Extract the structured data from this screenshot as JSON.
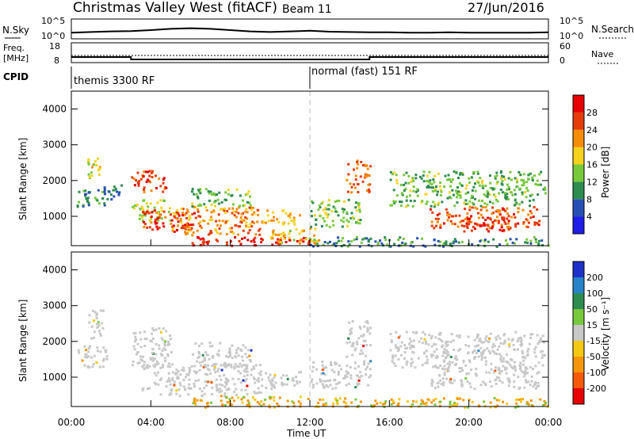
{
  "header": {
    "station": "Christmas Valley West (fitACF)",
    "beam": "Beam 11",
    "date": "27/Jun/2016"
  },
  "noise_panel": {
    "left_label": "N.Sky",
    "right_label": "N.Search",
    "left_ticks": [
      "10^5",
      "10^0"
    ],
    "right_ticks": [
      "10^5",
      "10^0"
    ]
  },
  "freq_panel": {
    "left_label_line1": "Freq.",
    "left_label_line2": "[MHz]",
    "left_ticks": [
      "18",
      "8"
    ],
    "right_label": "Nave",
    "right_ticks": [
      "60",
      "0"
    ]
  },
  "cpid_panel": {
    "label": "CPID",
    "modes": [
      "themis 3300 RF",
      "normal (fast) 151 RF"
    ]
  },
  "power_panel": {
    "ylabel": "Slant Range [km]",
    "yticks": [
      "1000",
      "2000",
      "3000",
      "4000"
    ],
    "colorbar_label": "Power [dB]",
    "colorbar_ticks": [
      "4",
      "8",
      "12",
      "16",
      "20",
      "24",
      "28"
    ],
    "colorbar_colors": [
      "#1e1ee6",
      "#2850b4",
      "#2d8c50",
      "#78c83c",
      "#f5d21e",
      "#f58c0a",
      "#e63c0a",
      "#e60000"
    ]
  },
  "velocity_panel": {
    "ylabel": "Slant Range [km]",
    "yticks": [
      "1000",
      "2000",
      "3000",
      "4000"
    ],
    "colorbar_label": "Velocity [m s⁻¹]",
    "colorbar_ticks": [
      "200",
      "100",
      "50",
      "15",
      "-15",
      "-50",
      "-100",
      "-200"
    ],
    "colorbar_colors": [
      "#1e32c8",
      "#2882c8",
      "#2d8c50",
      "#78c83c",
      "#c8c8c8",
      "#f5c814",
      "#f5960a",
      "#f55a0a",
      "#e60000"
    ]
  },
  "xaxis": {
    "ticks": [
      "00:00",
      "04:00",
      "08:00",
      "12:00",
      "16:00",
      "20:00",
      "00:00"
    ],
    "label": "Time UT"
  },
  "chart_data": [
    {
      "type": "line",
      "name": "noise",
      "x_hours": [
        0,
        1,
        2,
        3,
        4,
        5,
        6,
        7,
        8,
        9,
        10,
        11,
        12,
        13,
        14,
        15,
        16,
        17,
        18,
        19,
        20,
        21,
        22,
        23,
        24
      ],
      "series": [
        {
          "values": [
            1.2,
            1.4,
            1.6,
            1.7,
            2.0,
            2.4,
            2.6,
            2.4,
            2.0,
            1.6,
            1.4,
            1.6,
            1.8,
            1.5,
            1.4,
            1.3,
            1.3,
            1.2,
            1.2,
            1.3,
            1.2,
            1.2,
            1.2,
            1.2,
            1.3
          ]
        }
      ]
    },
    {
      "type": "line",
      "name": "frequency-nave",
      "x_hours": [
        0,
        3,
        3,
        15,
        15,
        24
      ],
      "series": [
        {
          "values": [
            10.8,
            10.8,
            9.6,
            9.6,
            10.8,
            10.8
          ]
        }
      ],
      "ylim": [
        8,
        18
      ]
    },
    {
      "type": "heatmap",
      "name": "power",
      "xlim": [
        0,
        24
      ],
      "ylim": [
        180,
        4500
      ],
      "yticks": [
        1000,
        2000,
        3000,
        4000
      ],
      "xticks_hours": [
        0,
        4,
        8,
        12,
        16,
        20,
        24
      ],
      "vlim": [
        0,
        32
      ],
      "regions": [
        {
          "t0": 0.2,
          "t1": 1.8,
          "r0": 1300,
          "r1": 1800,
          "v": 10
        },
        {
          "t0": 0.8,
          "t1": 1.4,
          "r0": 2100,
          "r1": 2700,
          "v": 18
        },
        {
          "t0": 1.5,
          "t1": 2.5,
          "r0": 1500,
          "r1": 1900,
          "v": 8
        },
        {
          "t0": 3.0,
          "t1": 4.8,
          "r0": 1700,
          "r1": 2300,
          "v": 26
        },
        {
          "t0": 3.0,
          "t1": 5.0,
          "r0": 900,
          "r1": 1500,
          "v": 16
        },
        {
          "t0": 3.5,
          "t1": 6.5,
          "r0": 600,
          "r1": 1200,
          "v": 27
        },
        {
          "t0": 5.0,
          "t1": 9.5,
          "r0": 500,
          "r1": 1300,
          "v": 22
        },
        {
          "t0": 6.0,
          "t1": 9.0,
          "r0": 1300,
          "r1": 1800,
          "v": 13
        },
        {
          "t0": 6.0,
          "t1": 12.0,
          "r0": 200,
          "r1": 450,
          "v": 29
        },
        {
          "t0": 9.5,
          "t1": 11.5,
          "r0": 800,
          "r1": 1200,
          "v": 20
        },
        {
          "t0": 10.0,
          "t1": 12.5,
          "r0": 250,
          "r1": 700,
          "v": 19
        },
        {
          "t0": 12.0,
          "t1": 14.5,
          "r0": 700,
          "r1": 1500,
          "v": 14
        },
        {
          "t0": 13.8,
          "t1": 15.0,
          "r0": 1700,
          "r1": 2600,
          "v": 24
        },
        {
          "t0": 16.0,
          "t1": 23.8,
          "r0": 1300,
          "r1": 2300,
          "v": 13
        },
        {
          "t0": 18.0,
          "t1": 23.5,
          "r0": 700,
          "r1": 1300,
          "v": 25
        },
        {
          "t0": 19.5,
          "t1": 22.0,
          "r0": 600,
          "r1": 1000,
          "v": 28
        },
        {
          "t0": 12.0,
          "t1": 24.0,
          "r0": 180,
          "r1": 450,
          "v": 10
        }
      ]
    },
    {
      "type": "heatmap",
      "name": "velocity",
      "xlim": [
        0,
        24
      ],
      "ylim": [
        180,
        4500
      ],
      "yticks": [
        1000,
        2000,
        3000,
        4000
      ],
      "xticks_hours": [
        0,
        4,
        8,
        12,
        16,
        20,
        24
      ],
      "regions": [
        {
          "t0": 0.2,
          "t1": 1.8,
          "r0": 1300,
          "r1": 1900,
          "v": 0
        },
        {
          "t0": 0.8,
          "t1": 1.6,
          "r0": 2100,
          "r1": 2900,
          "v": 0
        },
        {
          "t0": 3.0,
          "t1": 5.0,
          "r0": 1300,
          "r1": 2400,
          "v": 0
        },
        {
          "t0": 3.5,
          "t1": 9.5,
          "r0": 500,
          "r1": 1400,
          "v": 0
        },
        {
          "t0": 6.0,
          "t1": 9.0,
          "r0": 1300,
          "r1": 2000,
          "v": 0
        },
        {
          "t0": 9.5,
          "t1": 11.5,
          "r0": 700,
          "r1": 1200,
          "v": 0
        },
        {
          "t0": 6.0,
          "t1": 12.0,
          "r0": 180,
          "r1": 480,
          "v": -60
        },
        {
          "t0": 12.0,
          "t1": 15.0,
          "r0": 700,
          "r1": 1500,
          "v": 0
        },
        {
          "t0": 13.8,
          "t1": 15.0,
          "r0": 1600,
          "r1": 2600,
          "v": 0
        },
        {
          "t0": 16.0,
          "t1": 23.8,
          "r0": 1300,
          "r1": 2300,
          "v": 0
        },
        {
          "t0": 18.0,
          "t1": 23.5,
          "r0": 700,
          "r1": 1300,
          "v": 0
        },
        {
          "t0": 12.0,
          "t1": 24.0,
          "r0": 180,
          "r1": 450,
          "v": -40
        }
      ]
    }
  ]
}
